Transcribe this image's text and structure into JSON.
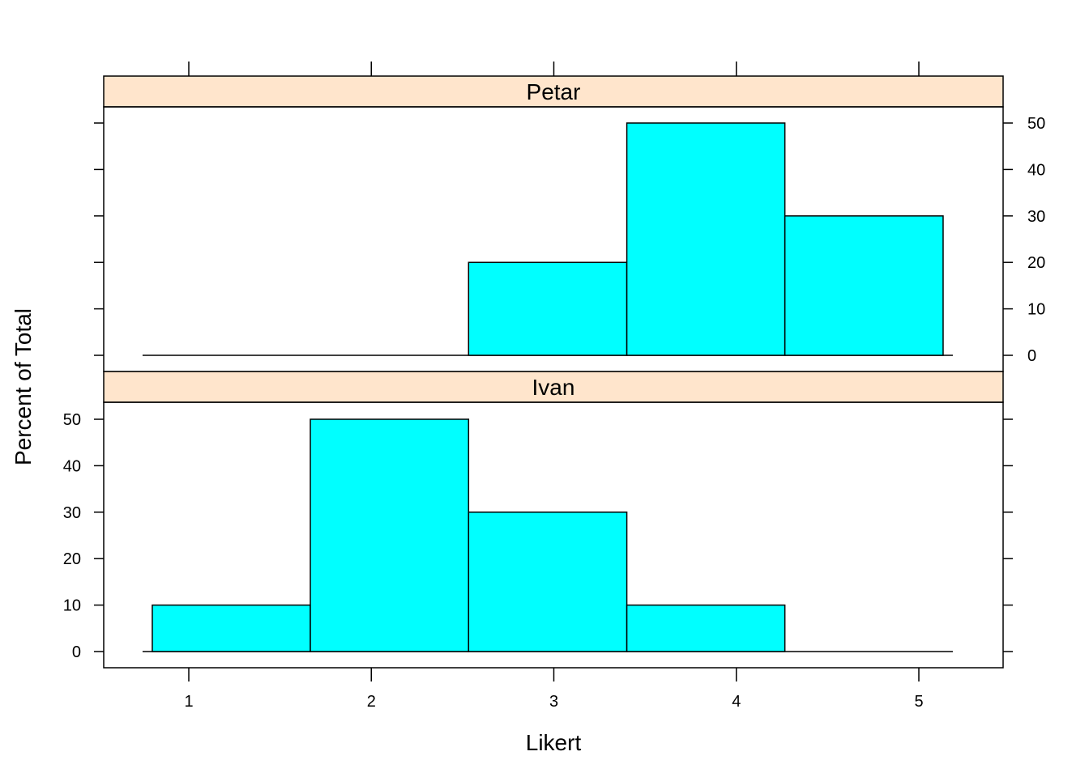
{
  "chart_data": {
    "type": "bar",
    "subtype": "histogram-trellis",
    "xlabel": "Likert",
    "ylabel": "Percent of Total",
    "x_ticks": [
      1,
      2,
      3,
      4,
      5
    ],
    "y_ticks": [
      0,
      10,
      20,
      30,
      40,
      50
    ],
    "xlim": [
      0.54,
      5.46
    ],
    "bin_edges": [
      0.8,
      1.666,
      2.533,
      3.4,
      4.266,
      5.133
    ],
    "strip_color": "#ffe5cc",
    "bar_color": "#00ffff",
    "panels": [
      {
        "name": "Petar",
        "values": [
          0,
          0,
          20,
          50,
          30
        ]
      },
      {
        "name": "Ivan",
        "values": [
          10,
          50,
          30,
          10,
          0
        ]
      }
    ]
  }
}
